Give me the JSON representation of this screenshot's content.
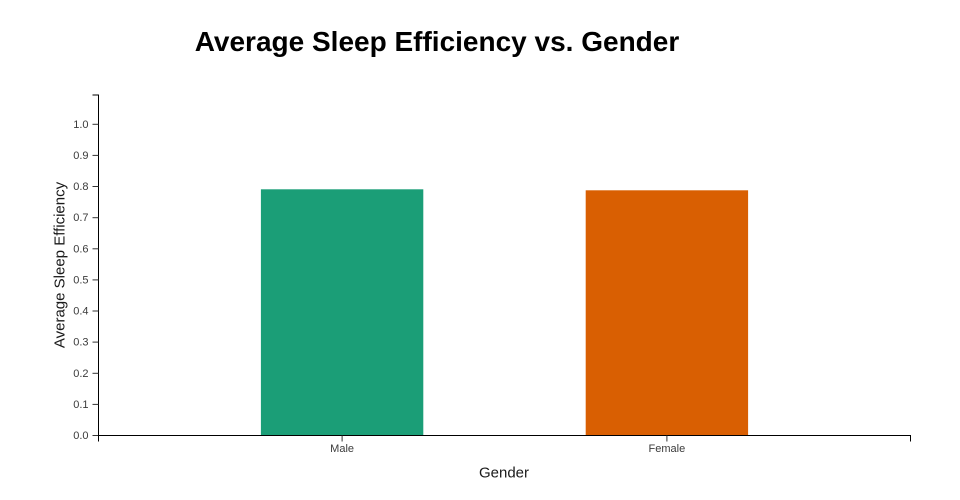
{
  "page_title": "Average Sleep Efficiency vs. Gender",
  "chart_data": {
    "type": "bar",
    "title": "Average Sleep Efficiency vs. Gender",
    "xlabel": "Gender",
    "ylabel": "Average Sleep Efficiency",
    "categories": [
      "Male",
      "Female"
    ],
    "values": [
      0.791,
      0.788
    ],
    "colors": [
      "#1b9e77",
      "#d95f02"
    ],
    "ylim": [
      0,
      1.0
    ],
    "yticks": [
      0.0,
      0.1,
      0.2,
      0.3,
      0.4,
      0.5,
      0.6,
      0.7,
      0.8,
      0.9,
      1.0
    ],
    "ytick_labels": [
      "0.0",
      "0.1",
      "0.2",
      "0.3",
      "0.4",
      "0.5",
      "0.6",
      "0.7",
      "0.8",
      "0.9",
      "1.0"
    ],
    "grid": false,
    "legend": false,
    "background_color": "#ffffff",
    "axis_color": "#000000",
    "tick_color": "#333333",
    "tick_label_color": "#3b3b3b",
    "title_color": "#000000"
  }
}
